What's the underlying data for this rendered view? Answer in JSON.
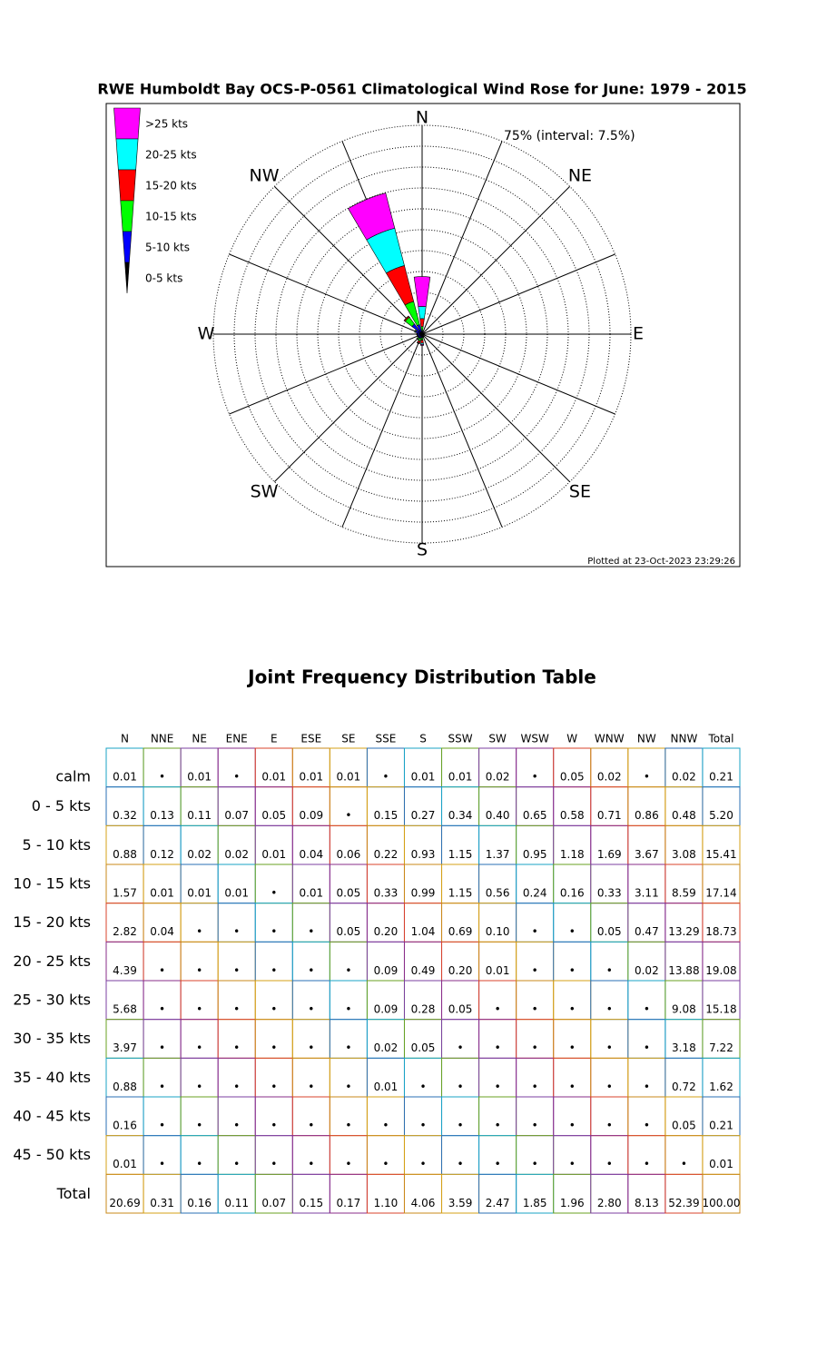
{
  "chart_data": {
    "type": "windrose",
    "title": "RWE Humboldt Bay OCS-P-0561 Climatological Wind Rose for June: 1979 - 2015",
    "annotations": {
      "interval": "75% (interval: 7.5%)",
      "plotted": "Plotted at 23-Oct-2023 23:29:26"
    },
    "categories": [
      "N",
      null,
      "NE",
      null,
      "E",
      null,
      "SE",
      null,
      "S",
      null,
      "SW",
      null,
      "W",
      null,
      "NW",
      null
    ],
    "rlim": [
      0,
      75
    ],
    "rticks": [
      7.5,
      15,
      22.5,
      30,
      37.5,
      45,
      52.5,
      60,
      67.5,
      75
    ],
    "series": [
      {
        "name": "0-5 kts",
        "color": "#000000",
        "values": [
          0.32,
          0.13,
          0.11,
          0.07,
          0.05,
          0.09,
          0,
          0.15,
          0.27,
          0.34,
          0.4,
          0.65,
          0.58,
          0.71,
          0.86,
          0.48
        ]
      },
      {
        "name": "5-10 kts",
        "color": "#0000ff",
        "values": [
          0.88,
          0.12,
          0.02,
          0.02,
          0.01,
          0.04,
          0.06,
          0.22,
          0.93,
          1.15,
          1.37,
          0.95,
          1.18,
          1.69,
          3.67,
          3.08
        ]
      },
      {
        "name": "10-15 kts",
        "color": "#00ff00",
        "values": [
          1.57,
          0.01,
          0.01,
          0.01,
          0,
          0.01,
          0.05,
          0.33,
          0.99,
          1.15,
          0.56,
          0.24,
          0.16,
          0.33,
          3.11,
          8.59
        ]
      },
      {
        "name": "15-20 kts",
        "color": "#ff0000",
        "values": [
          2.82,
          0.04,
          0,
          0,
          0,
          0,
          0.05,
          0.2,
          1.04,
          0.69,
          0.1,
          0,
          0,
          0.05,
          0.47,
          13.29
        ]
      },
      {
        "name": "20-25 kts",
        "color": "#00ffff",
        "values": [
          4.39,
          0,
          0,
          0,
          0,
          0,
          0,
          0.09,
          0.49,
          0.2,
          0.01,
          0,
          0,
          0,
          0.02,
          13.88
        ]
      },
      {
        "name": ">25 kts",
        "color": "#ff00ff",
        "values": [
          10.7,
          0,
          0,
          0,
          0,
          0,
          0,
          0.12,
          0.33,
          0.05,
          0,
          0,
          0,
          0,
          0,
          13.03
        ]
      }
    ]
  },
  "table": {
    "title": "Joint Frequency Distribution Table",
    "columns": [
      "N",
      "NNE",
      "NE",
      "ENE",
      "E",
      "ESE",
      "SE",
      "SSE",
      "S",
      "SSW",
      "SW",
      "WSW",
      "W",
      "WNW",
      "NW",
      "NNW",
      "Total"
    ],
    "rows": [
      {
        "label": "calm",
        "cells": [
          "0.01",
          "•",
          "0.01",
          "•",
          "0.01",
          "0.01",
          "0.01",
          "•",
          "0.01",
          "0.01",
          "0.02",
          "•",
          "0.05",
          "0.02",
          "•",
          "0.02",
          "0.21"
        ]
      },
      {
        "label": "0 - 5  kts",
        "cells": [
          "0.32",
          "0.13",
          "0.11",
          "0.07",
          "0.05",
          "0.09",
          "•",
          "0.15",
          "0.27",
          "0.34",
          "0.40",
          "0.65",
          "0.58",
          "0.71",
          "0.86",
          "0.48",
          "5.20"
        ]
      },
      {
        "label": "5 - 10 kts",
        "cells": [
          "0.88",
          "0.12",
          "0.02",
          "0.02",
          "0.01",
          "0.04",
          "0.06",
          "0.22",
          "0.93",
          "1.15",
          "1.37",
          "0.95",
          "1.18",
          "1.69",
          "3.67",
          "3.08",
          "15.41"
        ]
      },
      {
        "label": "10 - 15 kts",
        "cells": [
          "1.57",
          "0.01",
          "0.01",
          "0.01",
          "•",
          "0.01",
          "0.05",
          "0.33",
          "0.99",
          "1.15",
          "0.56",
          "0.24",
          "0.16",
          "0.33",
          "3.11",
          "8.59",
          "17.14"
        ]
      },
      {
        "label": "15 - 20 kts",
        "cells": [
          "2.82",
          "0.04",
          "•",
          "•",
          "•",
          "•",
          "0.05",
          "0.20",
          "1.04",
          "0.69",
          "0.10",
          "•",
          "•",
          "0.05",
          "0.47",
          "13.29",
          "18.73"
        ]
      },
      {
        "label": "20 - 25 kts",
        "cells": [
          "4.39",
          "•",
          "•",
          "•",
          "•",
          "•",
          "•",
          "0.09",
          "0.49",
          "0.20",
          "0.01",
          "•",
          "•",
          "•",
          "0.02",
          "13.88",
          "19.08"
        ]
      },
      {
        "label": "25 - 30 kts",
        "cells": [
          "5.68",
          "•",
          "•",
          "•",
          "•",
          "•",
          "•",
          "0.09",
          "0.28",
          "0.05",
          "•",
          "•",
          "•",
          "•",
          "•",
          "9.08",
          "15.18"
        ]
      },
      {
        "label": "30 - 35 kts",
        "cells": [
          "3.97",
          "•",
          "•",
          "•",
          "•",
          "•",
          "•",
          "0.02",
          "0.05",
          "•",
          "•",
          "•",
          "•",
          "•",
          "•",
          "3.18",
          "7.22"
        ]
      },
      {
        "label": "35 - 40 kts",
        "cells": [
          "0.88",
          "•",
          "•",
          "•",
          "•",
          "•",
          "•",
          "0.01",
          "•",
          "•",
          "•",
          "•",
          "•",
          "•",
          "•",
          "0.72",
          "1.62"
        ]
      },
      {
        "label": "40 - 45 kts",
        "cells": [
          "0.16",
          "•",
          "•",
          "•",
          "•",
          "•",
          "•",
          "•",
          "•",
          "•",
          "•",
          "•",
          "•",
          "•",
          "•",
          "0.05",
          "0.21"
        ]
      },
      {
        "label": "45 - 50 kts",
        "cells": [
          "0.01",
          "•",
          "•",
          "•",
          "•",
          "•",
          "•",
          "•",
          "•",
          "•",
          "•",
          "•",
          "•",
          "•",
          "•",
          "•",
          "0.01"
        ]
      },
      {
        "label": "Total",
        "cells": [
          "20.69",
          "0.31",
          "0.16",
          "0.11",
          "0.07",
          "0.15",
          "0.17",
          "1.10",
          "4.06",
          "3.59",
          "2.47",
          "1.85",
          "1.96",
          "2.80",
          "8.13",
          "52.39",
          "100.00"
        ]
      }
    ]
  }
}
